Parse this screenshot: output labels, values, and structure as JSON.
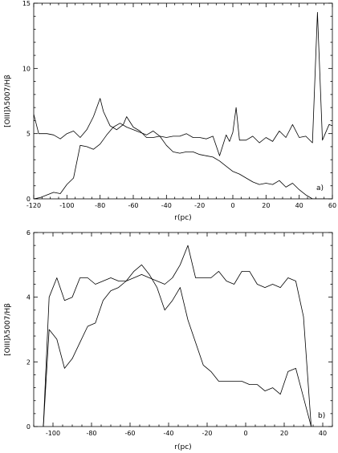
{
  "chart_data": [
    {
      "type": "line",
      "panel_label": "a)",
      "xlabel": "r(pc)",
      "ylabel": "[OIII]λ5007/Hβ",
      "xlim": [
        -120,
        60
      ],
      "ylim": [
        0,
        15
      ],
      "xticks": [
        -120,
        -100,
        -80,
        -60,
        -40,
        -20,
        0,
        20,
        40,
        60
      ],
      "yticks": [
        0,
        5,
        10,
        15
      ],
      "grid": false,
      "series": [
        {
          "x": [
            -120,
            -117,
            -112,
            -108,
            -104,
            -100,
            -96,
            -92,
            -88,
            -84,
            -80,
            -78,
            -74,
            -70,
            -66,
            -64,
            -60,
            -56,
            -52,
            -48,
            -44,
            -40,
            -36,
            -32,
            -28,
            -24,
            -20,
            -16,
            -12,
            -8,
            -4,
            -2,
            0,
            2,
            4,
            8,
            12,
            16,
            20,
            24,
            28,
            32,
            36,
            40,
            44,
            48,
            51,
            54,
            58,
            60
          ],
          "y": [
            6.5,
            5.0,
            5.0,
            4.9,
            4.6,
            5.0,
            5.2,
            4.7,
            5.3,
            6.3,
            7.7,
            6.7,
            5.6,
            5.3,
            5.7,
            6.3,
            5.5,
            5.2,
            4.7,
            4.7,
            4.8,
            4.7,
            4.8,
            4.8,
            5.0,
            4.7,
            4.7,
            4.6,
            4.8,
            3.3,
            4.9,
            4.4,
            5.1,
            7.0,
            4.5,
            4.5,
            4.8,
            4.3,
            4.7,
            4.4,
            5.2,
            4.7,
            5.7,
            4.7,
            4.8,
            4.3,
            14.3,
            4.5,
            5.7,
            5.6
          ]
        },
        {
          "x": [
            -120,
            -116,
            -112,
            -108,
            -104,
            -100,
            -96,
            -92,
            -88,
            -84,
            -80,
            -76,
            -72,
            -68,
            -64,
            -60,
            -56,
            -52,
            -48,
            -44,
            -40,
            -36,
            -32,
            -28,
            -24,
            -20,
            -16,
            -12,
            -8,
            -4,
            0,
            4,
            8,
            12,
            16,
            20,
            24,
            28,
            32,
            36,
            40,
            44,
            48,
            52,
            56,
            60
          ],
          "y": [
            0.0,
            0.1,
            0.3,
            0.5,
            0.4,
            1.1,
            1.6,
            4.1,
            4.0,
            3.8,
            4.2,
            4.9,
            5.5,
            5.8,
            5.5,
            5.3,
            5.1,
            4.9,
            5.2,
            4.8,
            4.1,
            3.6,
            3.5,
            3.6,
            3.6,
            3.4,
            3.3,
            3.2,
            2.9,
            2.5,
            2.1,
            1.9,
            1.6,
            1.3,
            1.1,
            1.2,
            1.1,
            1.4,
            0.9,
            1.2,
            0.7,
            0.3,
            0.0,
            0.0,
            0.0,
            0.0
          ]
        }
      ]
    },
    {
      "type": "line",
      "panel_label": "b)",
      "xlabel": "r(pc)",
      "ylabel": "[OIII]λ5007/Hβ",
      "xlim": [
        -110,
        45
      ],
      "ylim": [
        0,
        6
      ],
      "xticks": [
        -100,
        -80,
        -60,
        -40,
        -20,
        0,
        20,
        40
      ],
      "yticks": [
        0,
        2,
        4,
        6
      ],
      "grid": false,
      "series": [
        {
          "x": [
            -105,
            -102,
            -98,
            -94,
            -90,
            -86,
            -82,
            -78,
            -74,
            -70,
            -66,
            -62,
            -58,
            -54,
            -50,
            -46,
            -42,
            -38,
            -34,
            -30,
            -26,
            -22,
            -18,
            -14,
            -10,
            -6,
            -2,
            2,
            6,
            10,
            14,
            18,
            22,
            26,
            30,
            34
          ],
          "y": [
            0.0,
            4.0,
            4.6,
            3.9,
            4.0,
            4.6,
            4.6,
            4.4,
            4.5,
            4.6,
            4.5,
            4.5,
            4.6,
            4.7,
            4.6,
            4.5,
            4.4,
            4.6,
            5.0,
            5.6,
            4.6,
            4.6,
            4.6,
            4.8,
            4.5,
            4.4,
            4.8,
            4.8,
            4.4,
            4.3,
            4.4,
            4.3,
            4.6,
            4.5,
            3.4,
            0.0
          ]
        },
        {
          "x": [
            -105,
            -102,
            -98,
            -94,
            -90,
            -86,
            -82,
            -78,
            -74,
            -70,
            -66,
            -62,
            -58,
            -54,
            -50,
            -46,
            -42,
            -38,
            -34,
            -30,
            -26,
            -22,
            -18,
            -14,
            -10,
            -6,
            -2,
            2,
            6,
            10,
            14,
            18,
            22,
            26,
            30,
            34
          ],
          "y": [
            0.0,
            3.0,
            2.7,
            1.8,
            2.1,
            2.6,
            3.1,
            3.2,
            3.9,
            4.2,
            4.3,
            4.5,
            4.8,
            5.0,
            4.7,
            4.3,
            3.6,
            3.9,
            4.3,
            3.3,
            2.6,
            1.9,
            1.7,
            1.4,
            1.4,
            1.4,
            1.4,
            1.3,
            1.3,
            1.1,
            1.2,
            1.0,
            1.7,
            1.8,
            0.9,
            0.0
          ]
        }
      ]
    }
  ]
}
